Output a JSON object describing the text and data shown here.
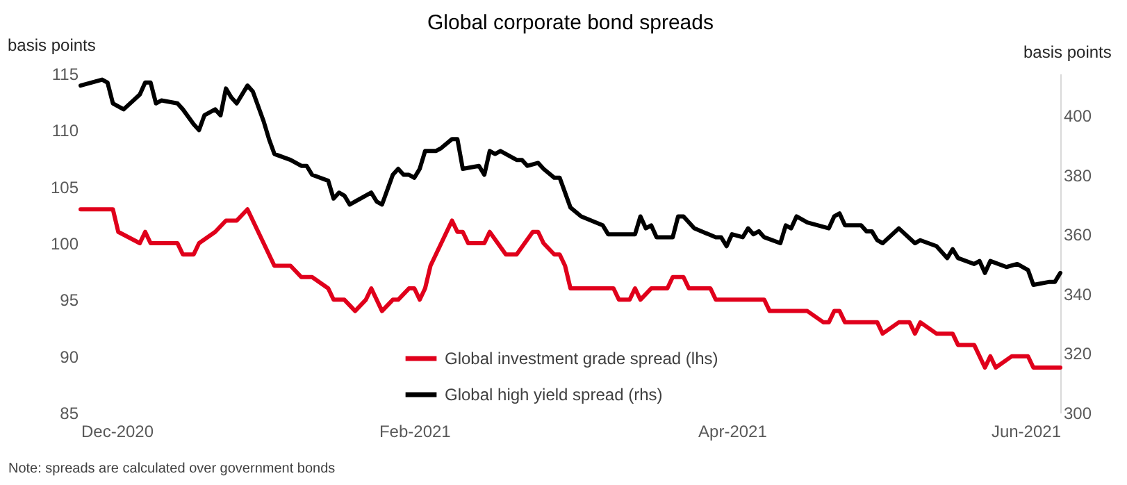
{
  "chart_data": {
    "type": "line",
    "title": "Global corporate bond spreads",
    "ylabel": "basis points",
    "y2label": "basis points",
    "xlim": [
      "2020-12-01",
      "2021-06-01"
    ],
    "xticks": [
      {
        "value": "2020-12-01",
        "label": "Dec-2020"
      },
      {
        "value": "2021-02-01",
        "label": "Feb-2021"
      },
      {
        "value": "2021-04-01",
        "label": "Apr-2021"
      },
      {
        "value": "2021-06-01",
        "label": "Jun-2021"
      }
    ],
    "ylim": [
      85,
      115
    ],
    "yticks": [
      85,
      90,
      95,
      100,
      105,
      110,
      115
    ],
    "y2lim": [
      300,
      414
    ],
    "y2ticks": [
      300,
      320,
      340,
      360,
      380,
      400
    ],
    "grid": false,
    "legend": "bottom",
    "marker": "none",
    "line_style": "solid",
    "annotations": [
      "Note: spreads are calculated over government bonds"
    ],
    "series": [
      {
        "name": "Global investment grade spread (lhs)",
        "color": "#e0001b",
        "axis": "y",
        "x": [
          "2020-12-01",
          "2020-12-07",
          "2020-12-08",
          "2020-12-12",
          "2020-12-13",
          "2020-12-14",
          "2020-12-19",
          "2020-12-20",
          "2020-12-22",
          "2020-12-23",
          "2020-12-26",
          "2020-12-28",
          "2020-12-30",
          "2021-01-01",
          "2021-01-04",
          "2021-01-06",
          "2021-01-09",
          "2021-01-11",
          "2021-01-13",
          "2021-01-16",
          "2021-01-17",
          "2021-01-19",
          "2021-01-21",
          "2021-01-23",
          "2021-01-24",
          "2021-01-26",
          "2021-01-28",
          "2021-01-29",
          "2021-01-31",
          "2021-02-01",
          "2021-02-02",
          "2021-02-03",
          "2021-02-04",
          "2021-02-06",
          "2021-02-08",
          "2021-02-09",
          "2021-02-10",
          "2021-02-11",
          "2021-02-14",
          "2021-02-15",
          "2021-02-18",
          "2021-02-20",
          "2021-02-23",
          "2021-02-24",
          "2021-02-25",
          "2021-02-27",
          "2021-02-28",
          "2021-03-01",
          "2021-03-02",
          "2021-03-10",
          "2021-03-11",
          "2021-03-13",
          "2021-03-14",
          "2021-03-15",
          "2021-03-17",
          "2021-03-20",
          "2021-03-21",
          "2021-03-23",
          "2021-03-24",
          "2021-03-28",
          "2021-03-29",
          "2021-04-07",
          "2021-04-08",
          "2021-04-15",
          "2021-04-18",
          "2021-04-19",
          "2021-04-20",
          "2021-04-21",
          "2021-04-22",
          "2021-04-28",
          "2021-04-29",
          "2021-05-02",
          "2021-05-04",
          "2021-05-05",
          "2021-05-06",
          "2021-05-09",
          "2021-05-12",
          "2021-05-13",
          "2021-05-16",
          "2021-05-18",
          "2021-05-19",
          "2021-05-20",
          "2021-05-23",
          "2021-05-26",
          "2021-05-27",
          "2021-06-01"
        ],
        "values": [
          103,
          103,
          101,
          100,
          101,
          100,
          100,
          99,
          99,
          100,
          101,
          102,
          102,
          103,
          100,
          98,
          98,
          97,
          97,
          96,
          95,
          95,
          94,
          95,
          96,
          94,
          95,
          95,
          96,
          96,
          95,
          96,
          98,
          100,
          102,
          101,
          101,
          100,
          100,
          101,
          99,
          99,
          101,
          101,
          100,
          99,
          99,
          98,
          96,
          96,
          95,
          95,
          96,
          95,
          96,
          96,
          97,
          97,
          96,
          96,
          95,
          95,
          94,
          94,
          93,
          93,
          94,
          94,
          93,
          93,
          92,
          93,
          93,
          92,
          93,
          92,
          92,
          91,
          91,
          89,
          90,
          89,
          90,
          90,
          89,
          89
        ]
      },
      {
        "name": "Global high yield spread (rhs)",
        "color": "#000000",
        "axis": "y2",
        "x": [
          "2020-12-01",
          "2020-12-05",
          "2020-12-06",
          "2020-12-07",
          "2020-12-09",
          "2020-12-12",
          "2020-12-13",
          "2020-12-14",
          "2020-12-15",
          "2020-12-16",
          "2020-12-19",
          "2020-12-20",
          "2020-12-22",
          "2020-12-23",
          "2020-12-24",
          "2020-12-26",
          "2020-12-27",
          "2020-12-28",
          "2020-12-29",
          "2020-12-30",
          "2021-01-01",
          "2021-01-02",
          "2021-01-04",
          "2021-01-05",
          "2021-01-06",
          "2021-01-09",
          "2021-01-11",
          "2021-01-12",
          "2021-01-13",
          "2021-01-16",
          "2021-01-17",
          "2021-01-18",
          "2021-01-19",
          "2021-01-20",
          "2021-01-24",
          "2021-01-25",
          "2021-01-26",
          "2021-01-28",
          "2021-01-29",
          "2021-01-30",
          "2021-01-31",
          "2021-02-01",
          "2021-02-02",
          "2021-02-03",
          "2021-02-05",
          "2021-02-06",
          "2021-02-08",
          "2021-02-09",
          "2021-02-10",
          "2021-02-13",
          "2021-02-14",
          "2021-02-15",
          "2021-02-16",
          "2021-02-17",
          "2021-02-20",
          "2021-02-21",
          "2021-02-22",
          "2021-02-24",
          "2021-02-25",
          "2021-02-27",
          "2021-02-28",
          "2021-03-02",
          "2021-03-04",
          "2021-03-08",
          "2021-03-09",
          "2021-03-14",
          "2021-03-15",
          "2021-03-16",
          "2021-03-17",
          "2021-03-18",
          "2021-03-21",
          "2021-03-22",
          "2021-03-23",
          "2021-03-25",
          "2021-03-29",
          "2021-03-30",
          "2021-03-31",
          "2021-04-01",
          "2021-04-03",
          "2021-04-04",
          "2021-04-05",
          "2021-04-06",
          "2021-04-07",
          "2021-04-10",
          "2021-04-11",
          "2021-04-12",
          "2021-04-13",
          "2021-04-15",
          "2021-04-19",
          "2021-04-20",
          "2021-04-21",
          "2021-04-22",
          "2021-04-25",
          "2021-04-26",
          "2021-04-27",
          "2021-04-28",
          "2021-04-29",
          "2021-05-02",
          "2021-05-05",
          "2021-05-06",
          "2021-05-09",
          "2021-05-11",
          "2021-05-12",
          "2021-05-13",
          "2021-05-16",
          "2021-05-17",
          "2021-05-18",
          "2021-05-19",
          "2021-05-22",
          "2021-05-24",
          "2021-05-26",
          "2021-05-27",
          "2021-05-30",
          "2021-05-31",
          "2021-06-01"
        ],
        "values": [
          410,
          412,
          411,
          404,
          402,
          407,
          411,
          411,
          404,
          405,
          404,
          402,
          397,
          395,
          400,
          402,
          400,
          409,
          406,
          404,
          410,
          408,
          398,
          392,
          387,
          385,
          383,
          383,
          380,
          378,
          372,
          374,
          373,
          370,
          374,
          371,
          370,
          380,
          382,
          380,
          380,
          379,
          382,
          388,
          388,
          389,
          392,
          392,
          382,
          383,
          380,
          388,
          387,
          388,
          385,
          385,
          383,
          384,
          382,
          379,
          379,
          369,
          366,
          363,
          360,
          360,
          366,
          362,
          363,
          359,
          359,
          366,
          366,
          362,
          359,
          359,
          356,
          360,
          359,
          362,
          360,
          361,
          359,
          357,
          363,
          362,
          366,
          364,
          362,
          366,
          367,
          363,
          363,
          361,
          361,
          358,
          357,
          362,
          357,
          358,
          356,
          352,
          355,
          352,
          350,
          351,
          347,
          351,
          349,
          350,
          348,
          343,
          344,
          344,
          347
        ]
      }
    ]
  }
}
